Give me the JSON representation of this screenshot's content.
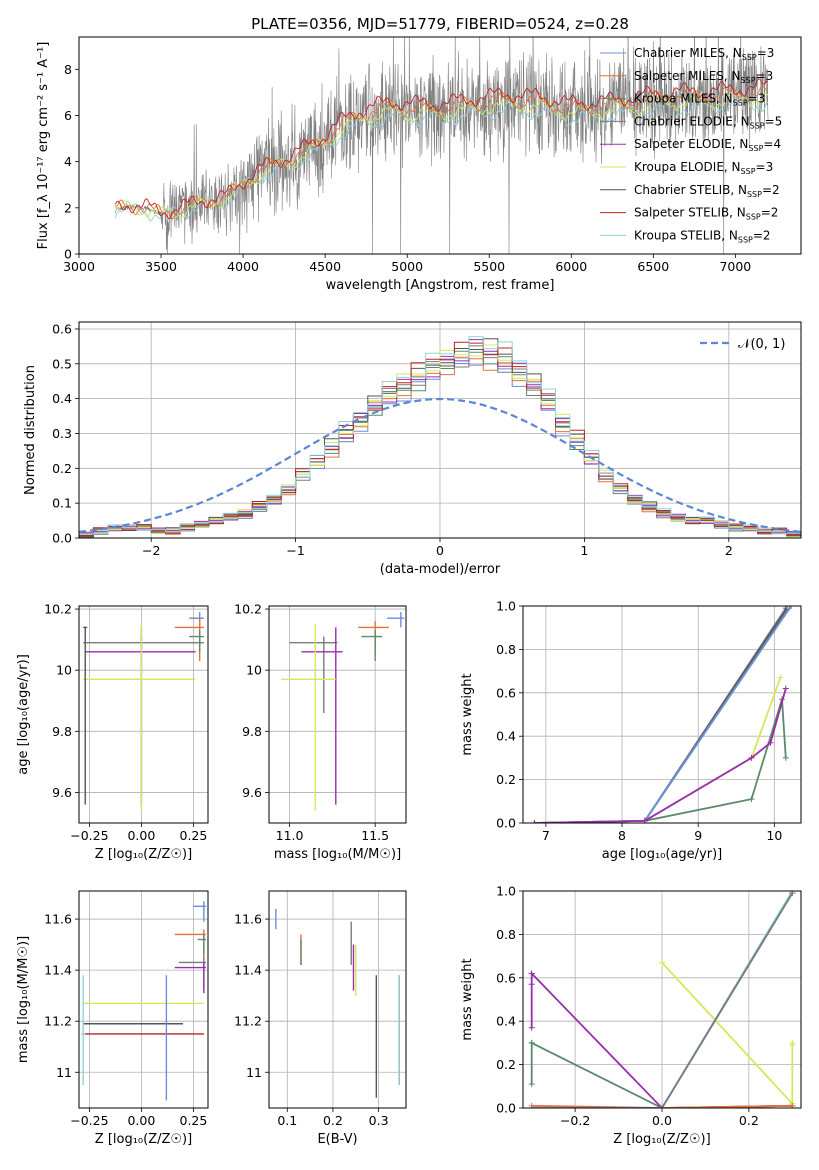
{
  "figure_title": "PLATE=0356, MJD=51779, FIBERID=0524, z=0.28",
  "series_styles": [
    {
      "name": "Chabrier MILES",
      "nssp": "3",
      "color": "#6a8fd8"
    },
    {
      "name": "Salpeter MILES",
      "nssp": "3",
      "color": "#e8703a"
    },
    {
      "name": "Kroupa MILES",
      "nssp": "3",
      "color": "#5a8a6a"
    },
    {
      "name": "Chabrier ELODIE",
      "nssp": "5",
      "color": "#7a7a7a"
    },
    {
      "name": "Salpeter ELODIE",
      "nssp": "4",
      "color": "#9a2cb0"
    },
    {
      "name": "Kroupa ELODIE",
      "nssp": "3",
      "color": "#d4e85a"
    },
    {
      "name": "Chabrier STELIB",
      "nssp": "2",
      "color": "#555555"
    },
    {
      "name": "Salpeter STELIB",
      "nssp": "2",
      "color": "#c0201f"
    },
    {
      "name": "Kroupa STELIB",
      "nssp": "2",
      "color": "#8fd4d8"
    }
  ],
  "chart_data": [
    {
      "id": "spectrum",
      "type": "line",
      "xlabel": "wavelength [Angstrom, rest frame]",
      "ylabel": "Flux [f_λ 10⁻¹⁷ erg cm⁻² s⁻¹ A⁻¹]",
      "xlim": [
        3000,
        7400
      ],
      "ylim": [
        0,
        9.4
      ],
      "xticks": [
        3000,
        3500,
        4000,
        4500,
        5000,
        5500,
        6000,
        6500,
        7000
      ],
      "yticks": [
        0,
        2,
        4,
        6,
        8
      ],
      "grid": false,
      "legend": "right",
      "model_envelope": {
        "x": [
          3220,
          3300,
          3400,
          3500,
          3600,
          3700,
          3800,
          3900,
          4000,
          4100,
          4200,
          4300,
          4400,
          4500,
          4600,
          4700,
          4800,
          4900,
          5000,
          5200,
          5400,
          5600,
          5800,
          6000,
          6200,
          6400,
          6600,
          6800,
          7000,
          7200
        ],
        "y": [
          1.9,
          2.05,
          2.0,
          1.7,
          1.9,
          2.1,
          2.3,
          2.4,
          3.0,
          3.5,
          3.8,
          4.1,
          4.5,
          4.9,
          5.5,
          5.9,
          6.1,
          6.3,
          6.2,
          6.2,
          6.4,
          6.6,
          6.5,
          6.2,
          6.3,
          6.5,
          6.7,
          6.7,
          6.8,
          6.9
        ]
      },
      "observed_range": [
        3220,
        7200
      ]
    },
    {
      "id": "residuals",
      "type": "histogram",
      "xlabel": "(data-model)/error",
      "ylabel": "Normed distribution",
      "xlim": [
        -2.5,
        2.5
      ],
      "ylim": [
        0,
        0.62
      ],
      "xticks": [
        -2,
        -1,
        0,
        1,
        2
      ],
      "xticklabels": [
        "−2",
        "−1",
        "0",
        "1",
        "2"
      ],
      "yticks": [
        0.0,
        0.1,
        0.2,
        0.3,
        0.4,
        0.5,
        0.6
      ],
      "grid": true,
      "legend": "top-right",
      "reference_curve": {
        "name": "𝒩(0, 1)",
        "mean": 0,
        "sigma": 1
      },
      "bin_centers": [
        -2.45,
        -2.35,
        -2.25,
        -2.15,
        -2.05,
        -1.95,
        -1.85,
        -1.75,
        -1.65,
        -1.55,
        -1.45,
        -1.35,
        -1.25,
        -1.15,
        -1.05,
        -0.95,
        -0.85,
        -0.75,
        -0.65,
        -0.55,
        -0.45,
        -0.35,
        -0.25,
        -0.15,
        -0.05,
        0.05,
        0.15,
        0.25,
        0.35,
        0.45,
        0.55,
        0.65,
        0.75,
        0.85,
        0.95,
        1.05,
        1.15,
        1.25,
        1.35,
        1.45,
        1.55,
        1.65,
        1.75,
        1.85,
        1.95,
        2.05,
        2.15,
        2.25,
        2.35,
        2.45
      ],
      "histogram_mean": [
        0.01,
        0.02,
        0.03,
        0.03,
        0.03,
        0.02,
        0.02,
        0.03,
        0.04,
        0.05,
        0.06,
        0.07,
        0.09,
        0.11,
        0.14,
        0.18,
        0.22,
        0.26,
        0.3,
        0.34,
        0.38,
        0.41,
        0.44,
        0.46,
        0.49,
        0.51,
        0.52,
        0.54,
        0.53,
        0.51,
        0.48,
        0.44,
        0.39,
        0.33,
        0.28,
        0.23,
        0.18,
        0.14,
        0.11,
        0.09,
        0.07,
        0.06,
        0.05,
        0.05,
        0.04,
        0.03,
        0.03,
        0.02,
        0.02,
        0.01
      ]
    },
    {
      "id": "age-vs-metallicity",
      "type": "scatter",
      "xlabel": "Z [log₁₀(Z/Z☉)]",
      "ylabel": "age  [log₁₀(age/yr)]",
      "xlim": [
        -0.3,
        0.32
      ],
      "ylim": [
        9.5,
        10.21
      ],
      "xticks": [
        -0.25,
        0.0,
        0.25
      ],
      "xticklabels": [
        "−0.25",
        "0.00",
        "0.25"
      ],
      "yticks": [
        9.6,
        9.8,
        10.0,
        10.2
      ],
      "grid": true,
      "points": [
        {
          "x": 0.28,
          "y": 10.17,
          "xerr": [
            0.05,
            0.02
          ],
          "yerr": [
            0.03,
            0.02
          ]
        },
        {
          "x": 0.28,
          "y": 10.14,
          "xerr": [
            0.12,
            0.02
          ],
          "yerr": [
            0.11,
            0.03
          ]
        },
        {
          "x": 0.28,
          "y": 10.11,
          "xerr": [
            0.05,
            0.02
          ],
          "yerr": [
            0.05,
            0.02
          ]
        },
        {
          "x": 0.0,
          "y": 10.09,
          "xerr": [
            0.28,
            0.3
          ],
          "yerr": [
            0.02,
            0.02
          ]
        },
        {
          "x": 0.0,
          "y": 10.06,
          "xerr": [
            0.27,
            0.26
          ],
          "yerr": [
            0.5,
            0.08
          ]
        },
        {
          "x": 0.0,
          "y": 9.97,
          "xerr": [
            0.28,
            0.26
          ],
          "yerr": [
            0.43,
            0.18
          ]
        },
        {
          "x": -0.27,
          "y": 10.14,
          "xerr": [
            0.01,
            0.01
          ],
          "yerr": [
            0.58,
            0.0
          ]
        }
      ]
    },
    {
      "id": "age-vs-mass",
      "type": "scatter",
      "xlabel": "mass [log₁₀(M/M☉)]",
      "ylabel": "",
      "xlim": [
        10.88,
        11.68
      ],
      "ylim": [
        9.5,
        10.21
      ],
      "xticks": [
        11.0,
        11.5
      ],
      "xticklabels": [
        "11.0",
        "11.5"
      ],
      "yticks": [
        9.6,
        9.8,
        10.0,
        10.2
      ],
      "grid": true,
      "points": [
        {
          "x": 11.65,
          "y": 10.17,
          "xerr": [
            0.08,
            0.02
          ],
          "yerr": [
            0.03,
            0.02
          ]
        },
        {
          "x": 11.5,
          "y": 10.14,
          "xerr": [
            0.1,
            0.08
          ],
          "yerr": [
            0.09,
            0.02
          ]
        },
        {
          "x": 11.5,
          "y": 10.11,
          "xerr": [
            0.08,
            0.04
          ],
          "yerr": [
            0.08,
            0.02
          ]
        },
        {
          "x": 11.2,
          "y": 10.09,
          "xerr": [
            0.2,
            0.08
          ],
          "yerr": [
            0.23,
            0.02
          ]
        },
        {
          "x": 11.27,
          "y": 10.06,
          "xerr": [
            0.2,
            0.04
          ],
          "yerr": [
            0.5,
            0.08
          ]
        },
        {
          "x": 11.15,
          "y": 9.97,
          "xerr": [
            0.2,
            0.12
          ],
          "yerr": [
            0.43,
            0.18
          ]
        }
      ]
    },
    {
      "id": "mass-weight-vs-age",
      "type": "line",
      "xlabel": "age  [log₁₀(age/yr)]",
      "ylabel": "mass weight",
      "xlim": [
        6.7,
        10.35
      ],
      "ylim": [
        0,
        1
      ],
      "xticks": [
        7,
        8,
        9,
        10
      ],
      "yticks": [
        0.0,
        0.2,
        0.4,
        0.6,
        0.8,
        1.0
      ],
      "grid": true,
      "series": [
        {
          "style": 3,
          "x": [
            6.85,
            8.3,
            10.15
          ],
          "y": [
            0.0,
            0.01,
            0.99
          ]
        },
        {
          "style": 6,
          "x": [
            6.85,
            8.3,
            10.17
          ],
          "y": [
            0.0,
            0.01,
            0.99
          ]
        },
        {
          "style": 8,
          "x": [
            6.85,
            8.3,
            10.2
          ],
          "y": [
            0.0,
            0.01,
            0.99
          ]
        },
        {
          "style": 0,
          "x": [
            6.85,
            8.3,
            10.22
          ],
          "y": [
            0.0,
            0.01,
            1.0
          ]
        },
        {
          "style": 5,
          "x": [
            6.85,
            8.3,
            9.7,
            10.08
          ],
          "y": [
            0.0,
            0.01,
            0.3,
            0.67
          ]
        },
        {
          "style": 2,
          "x": [
            6.85,
            8.3,
            9.7,
            10.1,
            10.15
          ],
          "y": [
            0.0,
            0.01,
            0.11,
            0.57,
            0.3
          ]
        },
        {
          "style": 4,
          "x": [
            6.85,
            8.3,
            9.7,
            9.95,
            10.15
          ],
          "y": [
            0.0,
            0.01,
            0.3,
            0.37,
            0.62
          ]
        }
      ]
    },
    {
      "id": "mass-vs-metallicity",
      "type": "scatter",
      "xlabel": "Z [log₁₀(Z/Z☉)]",
      "ylabel": "mass [log₁₀(M/M☉)]",
      "xlim": [
        -0.3,
        0.32
      ],
      "ylim": [
        10.86,
        11.71
      ],
      "xticks": [
        -0.25,
        0.0,
        0.25
      ],
      "xticklabels": [
        "−0.25",
        "0.00",
        "0.25"
      ],
      "yticks": [
        11.0,
        11.2,
        11.4,
        11.6
      ],
      "grid": true,
      "points": [
        {
          "x": 0.3,
          "y": 11.65,
          "xerr": [
            0.05,
            0.01
          ],
          "yerr": [
            0.06,
            0.02
          ]
        },
        {
          "x": 0.3,
          "y": 11.54,
          "xerr": [
            0.14,
            0.01
          ],
          "yerr": [
            0.1,
            0.02
          ]
        },
        {
          "x": 0.3,
          "y": 11.52,
          "xerr": [
            0.03,
            0.01
          ],
          "yerr": [
            0.06,
            0.02
          ]
        },
        {
          "x": 0.3,
          "y": 11.43,
          "xerr": [
            0.12,
            0.01
          ],
          "yerr": [
            0.1,
            0.02
          ]
        },
        {
          "x": 0.3,
          "y": 11.41,
          "xerr": [
            0.14,
            0.01
          ],
          "yerr": [
            0.1,
            0.02
          ]
        },
        {
          "x": 0.0,
          "y": 11.27,
          "xerr": [
            0.28,
            0.3
          ],
          "yerr": [
            0.0,
            0.0
          ]
        },
        {
          "x": 0.0,
          "y": 11.19,
          "xerr": [
            0.28,
            0.2
          ],
          "yerr": [
            0.0,
            0.0
          ]
        },
        {
          "x": 0.0,
          "y": 11.15,
          "xerr": [
            0.28,
            0.3
          ],
          "yerr": [
            0.0,
            0.0
          ]
        },
        {
          "x": -0.28,
          "y": 11.15,
          "xerr": [
            0.01,
            0.01
          ],
          "yerr": [
            0.2,
            0.23
          ]
        },
        {
          "x": 0.12,
          "y": 11.15,
          "xerr": [
            0.0,
            0.0
          ],
          "yerr": [
            0.26,
            0.23
          ]
        }
      ]
    },
    {
      "id": "mass-vs-ebv",
      "type": "scatter",
      "xlabel": "E(B-V)",
      "ylabel": "",
      "xlim": [
        0.06,
        0.36
      ],
      "ylim": [
        10.86,
        11.71
      ],
      "xticks": [
        0.1,
        0.2,
        0.3
      ],
      "xticklabels": [
        "0.1",
        "0.2",
        "0.3"
      ],
      "yticks": [
        11.0,
        11.2,
        11.4,
        11.6
      ],
      "grid": true,
      "points": [
        {
          "x": 0.075,
          "y": 11.6,
          "yerr": [
            0.04,
            0.04
          ]
        },
        {
          "x": 0.13,
          "y": 11.49,
          "yerr": [
            0.07,
            0.05
          ]
        },
        {
          "x": 0.13,
          "y": 11.47,
          "yerr": [
            0.05,
            0.05
          ]
        },
        {
          "x": 0.24,
          "y": 11.5,
          "yerr": [
            0.08,
            0.09
          ]
        },
        {
          "x": 0.245,
          "y": 11.4,
          "yerr": [
            0.08,
            0.1
          ]
        },
        {
          "x": 0.25,
          "y": 11.4,
          "yerr": [
            0.1,
            0.1
          ]
        },
        {
          "x": 0.295,
          "y": 11.15,
          "yerr": [
            0.25,
            0.23
          ]
        },
        {
          "x": 0.345,
          "y": 11.15,
          "yerr": [
            0.2,
            0.23
          ]
        },
        {
          "x": 0.345,
          "y": 11.2,
          "yerr": [
            0.25,
            0.18
          ]
        }
      ]
    },
    {
      "id": "mass-weight-vs-metallicity",
      "type": "line",
      "xlabel": "Z [log₁₀(Z/Z☉)]",
      "ylabel": "mass weight",
      "xlim": [
        -0.32,
        0.32
      ],
      "ylim": [
        0,
        1
      ],
      "xticks": [
        -0.2,
        0.0,
        0.2
      ],
      "xticklabels": [
        "−0.2",
        "0.0",
        "0.2"
      ],
      "yticks": [
        0.0,
        0.2,
        0.4,
        0.6,
        0.8,
        1.0
      ],
      "grid": true,
      "series": [
        {
          "style": 4,
          "x": [
            -0.3,
            -0.3,
            -0.3,
            0.0,
            0.3
          ],
          "y": [
            0.37,
            0.57,
            0.62,
            0.0,
            0.01
          ]
        },
        {
          "style": 2,
          "x": [
            -0.3,
            -0.3,
            -0.3,
            0.0,
            0.3
          ],
          "y": [
            0.11,
            0.3,
            0.3,
            0.0,
            0.01
          ]
        },
        {
          "style": 5,
          "x": [
            0.0,
            0.3,
            0.3,
            0.3
          ],
          "y": [
            0.67,
            0.02,
            0.3,
            0.29
          ]
        },
        {
          "style": 1,
          "x": [
            -0.3,
            0.0,
            0.3
          ],
          "y": [
            0.01,
            0.0,
            0.01
          ]
        },
        {
          "style": 0,
          "x": [
            -0.3,
            0.0,
            0.3
          ],
          "y": [
            0.0,
            0.0,
            0.99
          ]
        },
        {
          "style": 8,
          "x": [
            0.0,
            0.3
          ],
          "y": [
            0.0,
            1.0
          ]
        },
        {
          "style": 3,
          "x": [
            0.0,
            0.3
          ],
          "y": [
            0.0,
            0.99
          ]
        }
      ]
    }
  ]
}
